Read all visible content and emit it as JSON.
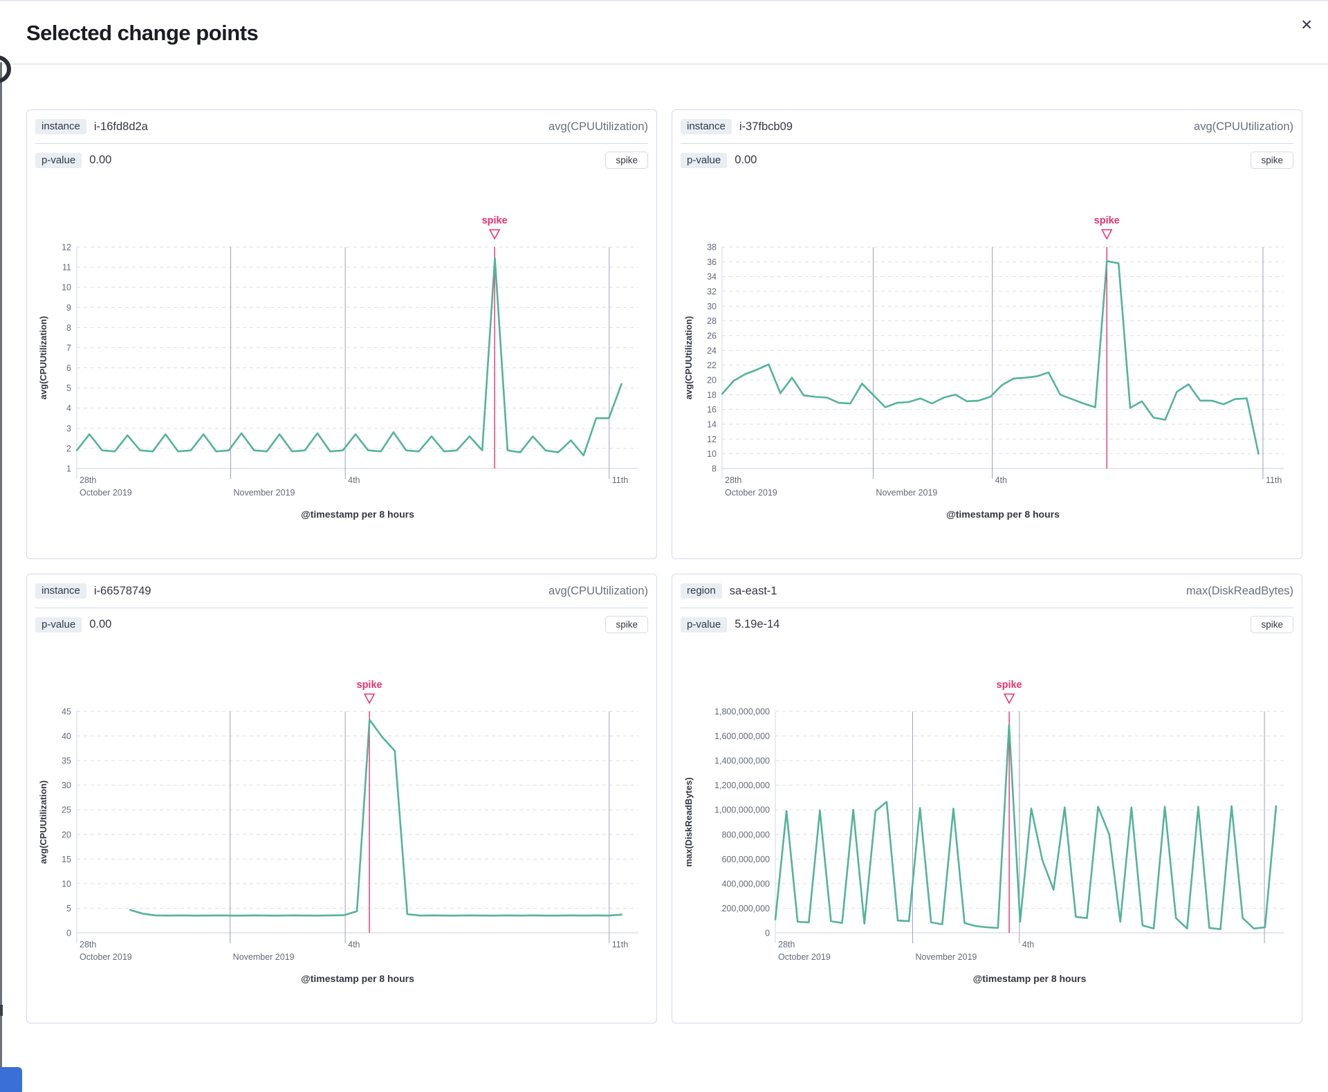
{
  "modal": {
    "title": "Selected change points",
    "close_icon": "✕"
  },
  "colors": {
    "line": "#54b399",
    "spike": "#e5326f",
    "gridline": "#dadeea",
    "axis_line": "#d3d9e3",
    "date_line": "#9aa2b1",
    "axis_text": "#646a77",
    "axis_title": "#343741",
    "edge_blue": "#3a6fd8"
  },
  "panels": [
    {
      "field_label": "instance",
      "field_value": "i-16fd8d2a",
      "metric": "avg(CPUUtilization)",
      "p_label": "p-value",
      "p_value": "0.00",
      "type_badge": "spike"
    },
    {
      "field_label": "instance",
      "field_value": "i-37fbcb09",
      "metric": "avg(CPUUtilization)",
      "p_label": "p-value",
      "p_value": "0.00",
      "type_badge": "spike"
    },
    {
      "field_label": "instance",
      "field_value": "i-66578749",
      "metric": "avg(CPUUtilization)",
      "p_label": "p-value",
      "p_value": "0.00",
      "type_badge": "spike"
    },
    {
      "field_label": "region",
      "field_value": "sa-east-1",
      "metric": "max(DiskReadBytes)",
      "p_label": "p-value",
      "p_value": "5.19e-14",
      "type_badge": "spike"
    }
  ],
  "chart_data": [
    {
      "type": "line",
      "ylabel": "avg(CPUUtilization)",
      "xlabel": "@timestamp per 8 hours",
      "annotation": "spike",
      "spike_frac": 0.744,
      "ylim": [
        1,
        12
      ],
      "yticks": [
        "12",
        "11",
        "10",
        "9",
        "8",
        "7",
        "6",
        "5",
        "4",
        "3",
        "2",
        "1"
      ],
      "xticks": [
        {
          "line1": "28th",
          "line2": "October 2019",
          "frac": 0
        },
        {
          "line1": "",
          "line2": "November 2019",
          "frac": 0.274
        },
        {
          "line1": "4th",
          "line2": "",
          "frac": 0.478
        },
        {
          "line1": "11th",
          "line2": "",
          "frac": 0.948
        }
      ],
      "x_span": [
        0,
        0.97
      ],
      "values": [
        1.9,
        2.7,
        1.9,
        1.85,
        2.65,
        1.9,
        1.85,
        2.7,
        1.85,
        1.9,
        2.7,
        1.85,
        1.9,
        2.75,
        1.9,
        1.85,
        2.7,
        1.85,
        1.9,
        2.75,
        1.85,
        1.9,
        2.7,
        1.9,
        1.85,
        2.8,
        1.9,
        1.85,
        2.6,
        1.85,
        1.9,
        2.6,
        1.9,
        11.45,
        1.9,
        1.8,
        2.6,
        1.9,
        1.8,
        2.4,
        1.65,
        3.5,
        3.5,
        5.2
      ]
    },
    {
      "type": "line",
      "ylabel": "avg(CPUUtilization)",
      "xlabel": "@timestamp per 8 hours",
      "annotation": "spike",
      "spike_frac": 0.685,
      "ylim": [
        8,
        38
      ],
      "yticks": [
        "38",
        "36",
        "34",
        "32",
        "30",
        "28",
        "26",
        "24",
        "22",
        "20",
        "18",
        "16",
        "14",
        "12",
        "10",
        "8"
      ],
      "xticks": [
        {
          "line1": "28th",
          "line2": "October 2019",
          "frac": 0
        },
        {
          "line1": "",
          "line2": "November 2019",
          "frac": 0.269
        },
        {
          "line1": "4th",
          "line2": "",
          "frac": 0.481
        },
        {
          "line1": "11th",
          "line2": "",
          "frac": 0.963
        }
      ],
      "x_span": [
        0,
        0.955
      ],
      "values": [
        18.1,
        19.9,
        20.8,
        21.4,
        22.1,
        18.2,
        20.3,
        17.9,
        17.7,
        17.6,
        16.9,
        16.8,
        19.5,
        17.9,
        16.3,
        16.9,
        17.0,
        17.5,
        16.8,
        17.6,
        18.0,
        17.1,
        17.2,
        17.7,
        19.3,
        20.2,
        20.3,
        20.5,
        21.0,
        18.0,
        17.4,
        16.8,
        16.3,
        36.1,
        35.8,
        16.2,
        17.1,
        14.9,
        14.6,
        18.4,
        19.4,
        17.2,
        17.2,
        16.7,
        17.4,
        17.5,
        10.0
      ]
    },
    {
      "type": "line",
      "ylabel": "avg(CPUUtilization)",
      "xlabel": "@timestamp per 8 hours",
      "annotation": "spike",
      "spike_frac": 0.521,
      "ylim": [
        0,
        45
      ],
      "yticks": [
        "45",
        "40",
        "35",
        "30",
        "25",
        "20",
        "15",
        "10",
        "5",
        "0"
      ],
      "xticks": [
        {
          "line1": "28th",
          "line2": "October 2019",
          "frac": 0
        },
        {
          "line1": "",
          "line2": "November 2019",
          "frac": 0.273
        },
        {
          "line1": "4th",
          "line2": "",
          "frac": 0.478
        },
        {
          "line1": "11th",
          "line2": "",
          "frac": 0.948
        }
      ],
      "x_span": [
        0.095,
        0.97
      ],
      "values": [
        4.65,
        3.9,
        3.55,
        3.5,
        3.55,
        3.5,
        3.5,
        3.55,
        3.5,
        3.5,
        3.55,
        3.5,
        3.5,
        3.55,
        3.5,
        3.5,
        3.55,
        3.6,
        4.4,
        43.3,
        39.8,
        37.0,
        3.8,
        3.5,
        3.55,
        3.5,
        3.5,
        3.55,
        3.5,
        3.5,
        3.55,
        3.5,
        3.55,
        3.5,
        3.5,
        3.55,
        3.5,
        3.55,
        3.5,
        3.7
      ]
    },
    {
      "type": "line",
      "ylabel": "max(DiskReadBytes)",
      "xlabel": "@timestamp per 8 hours",
      "annotation": "spike",
      "spike_frac": 0.46,
      "ylim": [
        0,
        1800000000
      ],
      "yticks": [
        "1,800,000,000",
        "1,600,000,000",
        "1,400,000,000",
        "1,200,000,000",
        "1,000,000,000",
        "800,000,000",
        "600,000,000",
        "400,000,000",
        "200,000,000",
        "0"
      ],
      "xticks": [
        {
          "line1": "28th",
          "line2": "October 2019",
          "frac": 0
        },
        {
          "line1": "",
          "line2": "November 2019",
          "frac": 0.27
        },
        {
          "line1": "4th",
          "line2": "",
          "frac": 0.48
        },
        {
          "line1": "",
          "line2": "",
          "frac": 0.962
        }
      ],
      "x_span": [
        0,
        0.985
      ],
      "values": [
        110000000,
        990000000,
        90000000,
        85000000,
        995000000,
        95000000,
        80000000,
        1000000000,
        75000000,
        990000000,
        1065000000,
        100000000,
        95000000,
        1015000000,
        85000000,
        70000000,
        1010000000,
        80000000,
        55000000,
        45000000,
        40000000,
        1690000000,
        90000000,
        1010000000,
        590000000,
        350000000,
        1020000000,
        130000000,
        120000000,
        1025000000,
        800000000,
        90000000,
        1020000000,
        60000000,
        35000000,
        1025000000,
        120000000,
        35000000,
        1025000000,
        40000000,
        30000000,
        1030000000,
        120000000,
        35000000,
        45000000,
        1030000000
      ]
    }
  ]
}
